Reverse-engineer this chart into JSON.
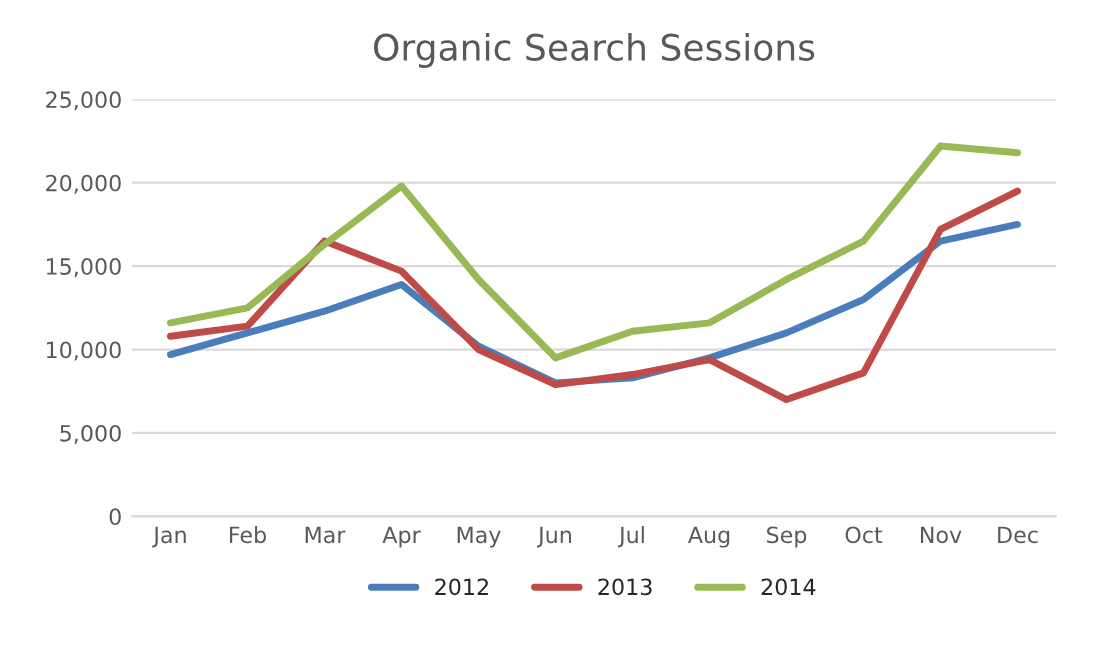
{
  "chart_data": {
    "type": "line",
    "title": "Organic Search Sessions",
    "categories": [
      "Jan",
      "Feb",
      "Mar",
      "Apr",
      "May",
      "Jun",
      "Jul",
      "Aug",
      "Sep",
      "Oct",
      "Nov",
      "Dec"
    ],
    "series": [
      {
        "name": "2012",
        "color": "#4a7ebb",
        "values": [
          9700,
          11000,
          12300,
          13900,
          10200,
          8000,
          8300,
          9500,
          11000,
          13000,
          16500,
          17500
        ]
      },
      {
        "name": "2013",
        "color": "#be4b48",
        "values": [
          10800,
          11400,
          16500,
          14700,
          10000,
          7900,
          8500,
          9400,
          7000,
          8600,
          17200,
          19500
        ]
      },
      {
        "name": "2014",
        "color": "#98b954",
        "values": [
          11600,
          12500,
          16300,
          19800,
          14200,
          9500,
          11100,
          11600,
          14200,
          16500,
          22200,
          21800
        ]
      }
    ],
    "ylim": [
      0,
      25000
    ],
    "yticks": [
      {
        "value": 0,
        "label": "0"
      },
      {
        "value": 5000,
        "label": "5,000"
      },
      {
        "value": 10000,
        "label": "10,000"
      },
      {
        "value": 15000,
        "label": "15,000"
      },
      {
        "value": 20000,
        "label": "20,000"
      },
      {
        "value": 25000,
        "label": "25,000"
      }
    ],
    "grid": "y",
    "legend": "bottom",
    "marker": "none",
    "line_style": "solid"
  }
}
